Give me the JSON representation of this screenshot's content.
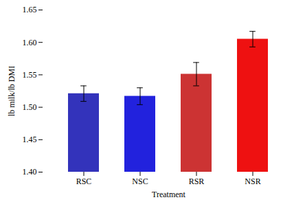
{
  "chart_data": {
    "type": "bar",
    "xlabel": "Treatment",
    "ylabel": "lb milk/lb DMI",
    "categories": [
      "RSC",
      "NSC",
      "RSR",
      "NSR"
    ],
    "values": [
      1.521,
      1.517,
      1.551,
      1.605
    ],
    "errors": [
      0.012,
      0.013,
      0.018,
      0.012
    ],
    "colors": [
      "#3333BB",
      "#2222DD",
      "#CC3333",
      "#EE1111"
    ],
    "ylim": [
      1.4,
      1.65
    ],
    "yticks": [
      {
        "value": 1.4,
        "label": "1.40"
      },
      1.45,
      {
        "value": 1.5,
        "label": "1.50"
      },
      1.55,
      {
        "value": 1.6,
        "label": "1.60"
      },
      1.65
    ],
    "grid": false
  }
}
